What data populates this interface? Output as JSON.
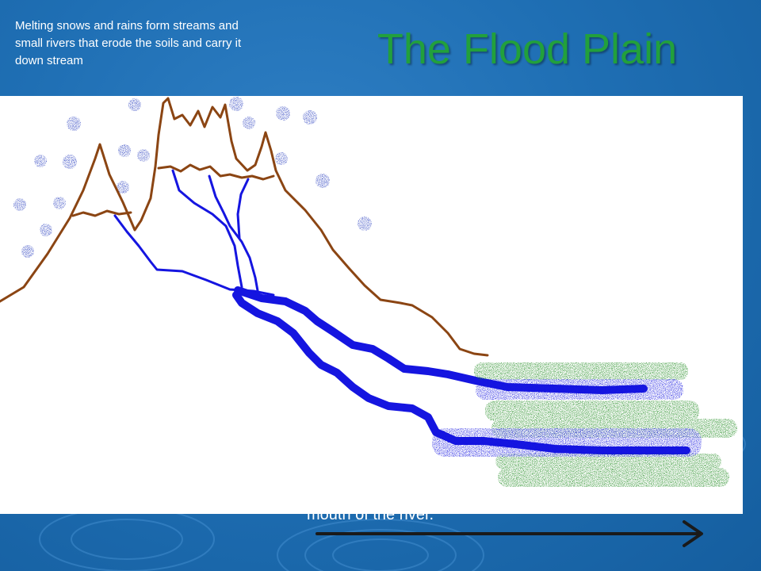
{
  "slide": {
    "title": "The Flood Plain",
    "caption": "Melting snows and rains form streams and small rivers that erode the soils and carry it down stream",
    "bottom_text": "mouth of the river."
  },
  "colors": {
    "background": "#1f6fb4",
    "title": "#22a03c",
    "mountain": "#8b4513",
    "river": "#1515e0",
    "snow": "#2a3fbf",
    "vegetation": "#1f8a1f",
    "arrow": "#1a1a1a"
  },
  "icons": {
    "arrow": "right-arrow-icon"
  }
}
